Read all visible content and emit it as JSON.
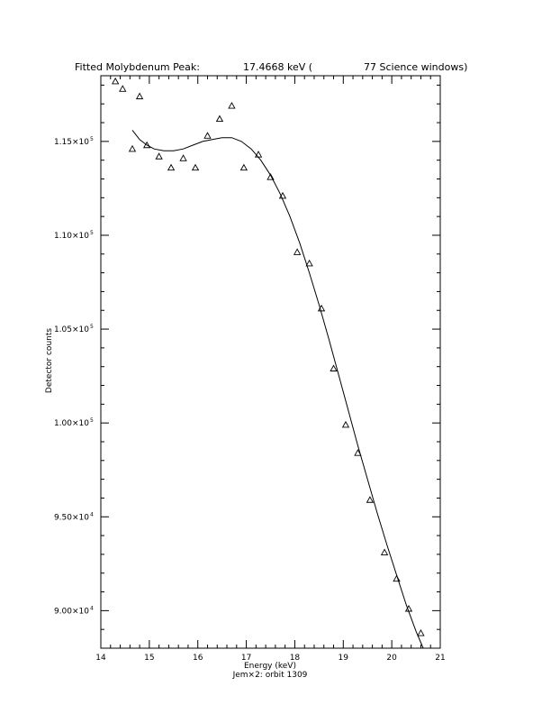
{
  "chart_data": {
    "type": "scatter",
    "title_parts": {
      "left": "Fitted Molybdenum Peak:",
      "mid": "17.4668 keV (",
      "right": "77 Science windows)"
    },
    "xlabel": "Energy (keV)",
    "xlabel2": "Jem×2: orbit 1309",
    "ylabel": "Detector counts",
    "xlim": [
      14,
      21
    ],
    "ylim": [
      88000,
      118500
    ],
    "x_ticks": [
      14,
      15,
      16,
      17,
      18,
      19,
      20,
      21
    ],
    "x_tick_labels": [
      "14",
      "15",
      "16",
      "17",
      "18",
      "19",
      "20",
      "21"
    ],
    "y_ticks": [
      90000,
      95000,
      100000,
      105000,
      110000,
      115000
    ],
    "y_tick_labels": [
      {
        "mant": "9.00×10",
        "exp": "4"
      },
      {
        "mant": "9.50×10",
        "exp": "4"
      },
      {
        "mant": "1.00×10",
        "exp": "5"
      },
      {
        "mant": "1.05×10",
        "exp": "5"
      },
      {
        "mant": "1.10×10",
        "exp": "5"
      },
      {
        "mant": "1.15×10",
        "exp": "5"
      }
    ],
    "series": [
      {
        "kind": "markers",
        "marker": "triangle-open",
        "points": [
          [
            14.15,
            118600
          ],
          [
            14.3,
            118200
          ],
          [
            14.45,
            117800
          ],
          [
            14.65,
            114600
          ],
          [
            14.8,
            117400
          ],
          [
            14.95,
            114800
          ],
          [
            15.2,
            114200
          ],
          [
            15.45,
            113600
          ],
          [
            15.7,
            114100
          ],
          [
            15.95,
            113600
          ],
          [
            16.2,
            115300
          ],
          [
            16.45,
            116200
          ],
          [
            16.7,
            116900
          ],
          [
            16.95,
            113600
          ],
          [
            17.25,
            114300
          ],
          [
            17.5,
            113100
          ],
          [
            17.75,
            112100
          ],
          [
            18.05,
            109100
          ],
          [
            18.3,
            108500
          ],
          [
            18.55,
            106100
          ],
          [
            18.8,
            102900
          ],
          [
            19.05,
            99900
          ],
          [
            19.3,
            98400
          ],
          [
            19.55,
            95900
          ],
          [
            19.85,
            93100
          ],
          [
            20.1,
            91700
          ],
          [
            20.35,
            90100
          ],
          [
            20.6,
            88800
          ]
        ]
      },
      {
        "kind": "line",
        "points": [
          [
            14.65,
            115600
          ],
          [
            14.8,
            115100
          ],
          [
            14.95,
            114800
          ],
          [
            15.1,
            114600
          ],
          [
            15.3,
            114500
          ],
          [
            15.5,
            114500
          ],
          [
            15.7,
            114600
          ],
          [
            15.9,
            114800
          ],
          [
            16.1,
            115000
          ],
          [
            16.3,
            115100
          ],
          [
            16.5,
            115200
          ],
          [
            16.7,
            115200
          ],
          [
            16.9,
            115000
          ],
          [
            17.1,
            114600
          ],
          [
            17.3,
            114000
          ],
          [
            17.5,
            113200
          ],
          [
            17.7,
            112200
          ],
          [
            17.9,
            111000
          ],
          [
            18.1,
            109600
          ],
          [
            18.3,
            108000
          ],
          [
            18.5,
            106300
          ],
          [
            18.7,
            104500
          ],
          [
            18.9,
            102600
          ],
          [
            19.1,
            100700
          ],
          [
            19.3,
            98800
          ],
          [
            19.5,
            97000
          ],
          [
            19.7,
            95200
          ],
          [
            19.9,
            93500
          ],
          [
            20.1,
            91900
          ],
          [
            20.3,
            90300
          ],
          [
            20.5,
            88900
          ],
          [
            20.65,
            88000
          ]
        ]
      }
    ]
  }
}
